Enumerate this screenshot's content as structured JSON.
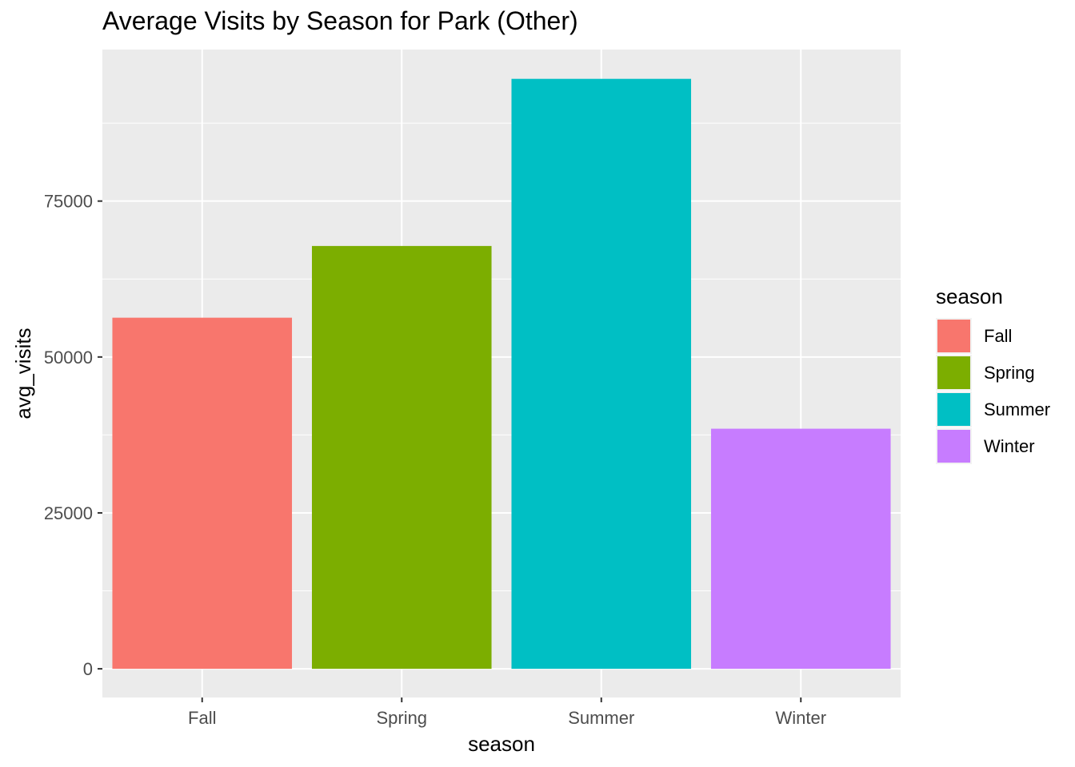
{
  "chart_data": {
    "type": "bar",
    "title": "Average Visits by Season for Park (Other)",
    "xlabel": "season",
    "ylabel": "avg_visits",
    "categories": [
      "Fall",
      "Spring",
      "Summer",
      "Winter"
    ],
    "values": [
      56300,
      67800,
      94600,
      38500
    ],
    "colors": [
      "#F8766D",
      "#7CAE00",
      "#00BFC4",
      "#C77CFF"
    ],
    "ylim": [
      -4600,
      99300
    ],
    "yticks": [
      0,
      25000,
      50000,
      75000
    ],
    "ytick_labels": [
      "0",
      "25000",
      "50000",
      "75000"
    ],
    "grid": true,
    "panel_background": "#EBEBEB",
    "legend": {
      "title": "season",
      "position": "right",
      "entries": [
        "Fall",
        "Spring",
        "Summer",
        "Winter"
      ]
    }
  }
}
